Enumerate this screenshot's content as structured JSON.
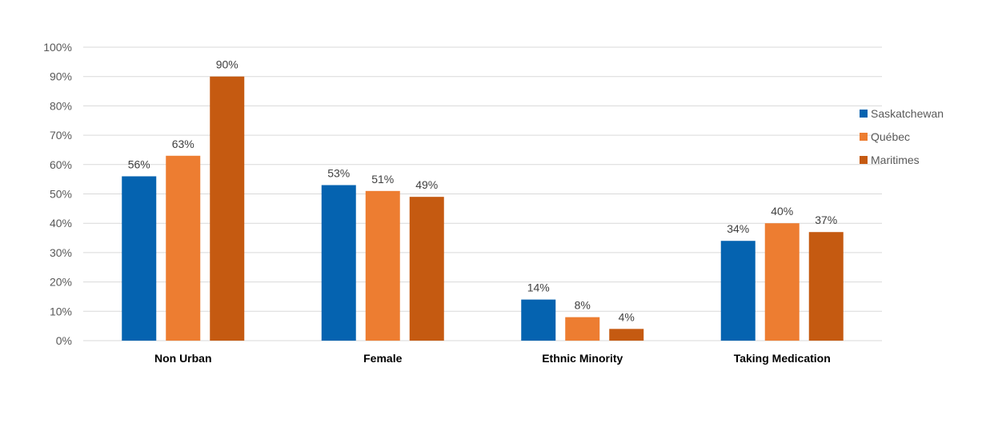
{
  "chart_data": {
    "type": "bar",
    "title": "",
    "xlabel": "",
    "ylabel": "",
    "categories": [
      "Non Urban",
      "Female",
      "Ethnic Minority",
      "Taking Medication"
    ],
    "series": [
      {
        "name": "Saskatchewan",
        "color": "#0563B0",
        "values": [
          56,
          53,
          14,
          34
        ]
      },
      {
        "name": "Québec",
        "color": "#ED7D31",
        "values": [
          63,
          51,
          8,
          40
        ]
      },
      {
        "name": "Maritimes",
        "color": "#C55A11",
        "values": [
          90,
          49,
          4,
          37
        ]
      }
    ],
    "ylim": [
      0,
      100
    ],
    "yticks": [
      0,
      10,
      20,
      30,
      40,
      50,
      60,
      70,
      80,
      90,
      100
    ],
    "value_suffix": "%",
    "grid": true,
    "legend_position": "right"
  }
}
